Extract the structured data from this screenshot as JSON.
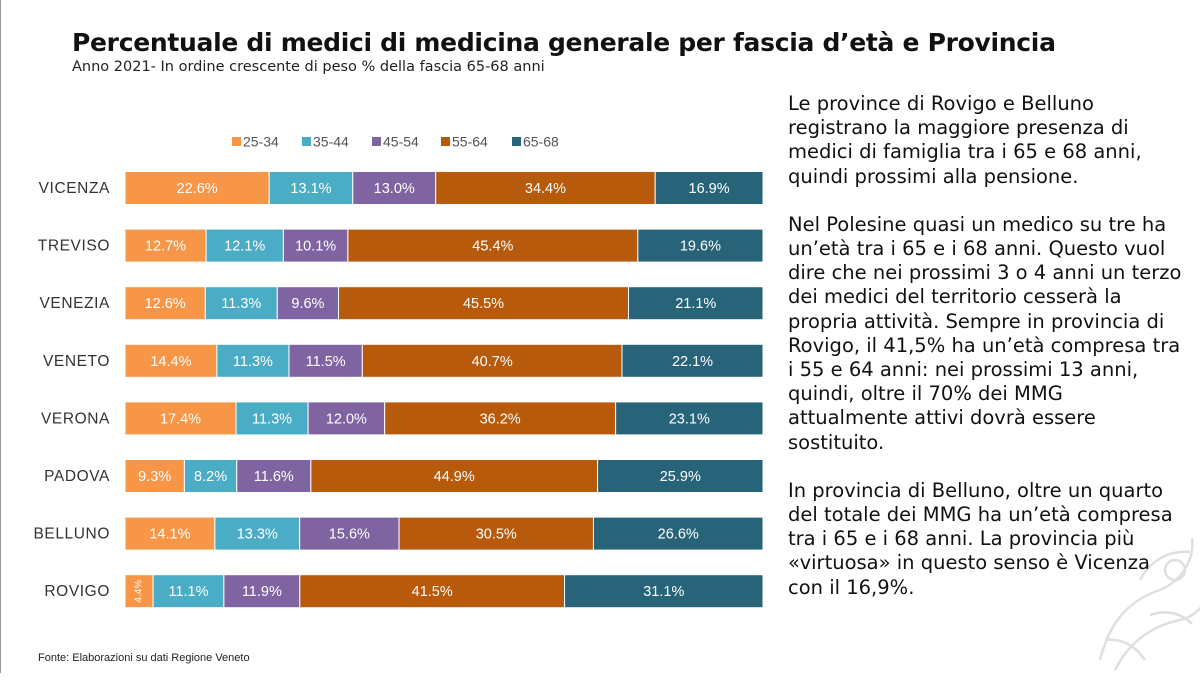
{
  "title": "Percentuale di medici di medicina generale per fascia d’età e Provincia",
  "subtitle": "Anno 2021- In ordine crescente di peso % della fascia 65-68 anni",
  "source": "Fonte: Elaborazioni su dati Regione Veneto",
  "commentary": [
    "Le province di Rovigo e Belluno registrano la maggiore presenza di medici di famiglia tra i 65 e 68 anni, quindi prossimi alla pensione.",
    "Nel Polesine quasi un medico su tre ha un’età tra i 65 e i 68 anni. Questo vuol dire che nei prossimi 3 o 4 anni un terzo dei medici del territorio cesserà la propria attività. Sempre in provincia di Rovigo, il 41,5% ha un’età compresa tra i 55 e 64 anni: nei prossimi 13 anni, quindi, oltre il 70% dei MMG attualmente attivi dovrà essere sostituito.",
    "In provincia di Belluno, oltre un quarto del totale dei MMG ha un’età compresa tra i 65 e i 68 anni. La provincia più «virtuosa» in questo senso è Vicenza con il 16,9%."
  ],
  "chart_data": {
    "type": "bar",
    "orientation": "horizontal",
    "stacked": "percent",
    "categories": [
      "VICENZA",
      "TREVISO",
      "VENEZIA",
      "VENETO",
      "VERONA",
      "PADOVA",
      "BELLUNO",
      "ROVIGO"
    ],
    "series": [
      {
        "name": "25-34",
        "color": "#F79646",
        "values": [
          22.6,
          12.7,
          12.6,
          14.4,
          17.4,
          9.3,
          14.1,
          4.4
        ],
        "labels": [
          "22.6%",
          "12.7%",
          "12.6%",
          "14.4%",
          "17.4%",
          "9.3%",
          "14.1%",
          "4.4%"
        ]
      },
      {
        "name": "35-44",
        "color": "#4BACC6",
        "values": [
          13.1,
          12.1,
          11.3,
          11.3,
          11.3,
          8.2,
          13.3,
          11.1
        ],
        "labels": [
          "13.1%",
          "12.1%",
          "11.3%",
          "11.3%",
          "11.3%",
          "8.2%",
          "13.3%",
          "11.1%"
        ]
      },
      {
        "name": "45-54",
        "color": "#8064A2",
        "values": [
          13.0,
          10.1,
          9.6,
          11.5,
          12.0,
          11.6,
          15.6,
          11.9
        ],
        "labels": [
          "13.0%",
          "10.1%",
          "9.6%",
          "11.5%",
          "12.0%",
          "11.6%",
          "15.6%",
          "11.9%"
        ]
      },
      {
        "name": "55-64",
        "color": "#B85A0C",
        "values": [
          34.4,
          45.4,
          45.5,
          40.7,
          36.2,
          44.9,
          30.5,
          41.5
        ],
        "labels": [
          "34.4%",
          "45.4%",
          "45.5%",
          "40.7%",
          "36.2%",
          "44.9%",
          "30.5%",
          "41.5%"
        ]
      },
      {
        "name": "65-68",
        "color": "#286479",
        "values": [
          16.9,
          19.6,
          21.1,
          22.1,
          23.1,
          25.9,
          26.6,
          31.1
        ],
        "labels": [
          "16.9%",
          "19.6%",
          "21.1%",
          "22.1%",
          "23.1%",
          "25.9%",
          "26.6%",
          "31.1%"
        ]
      }
    ],
    "legend_position": "top",
    "grid": false
  }
}
